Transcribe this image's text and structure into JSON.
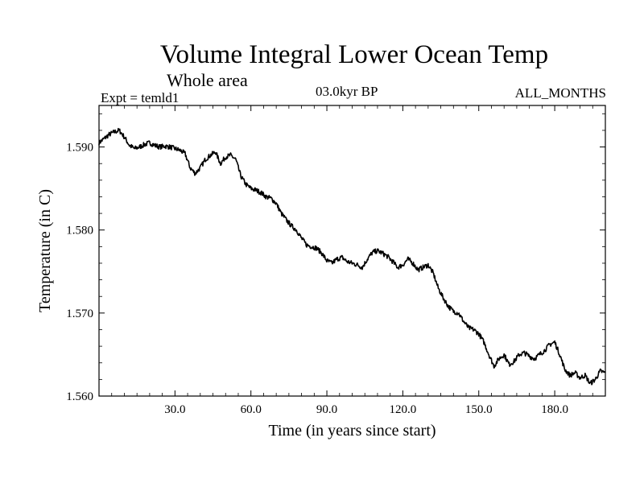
{
  "header": {
    "title": "Volume Integral Lower Ocean Temp",
    "subtitle": "Whole area",
    "experiment": "Expt = temld1",
    "time_label": "03.0kyr BP",
    "months": "ALL_MONTHS"
  },
  "chart_data": {
    "type": "line",
    "title": "Volume Integral Lower Ocean Temp",
    "xlabel": "Time (in years since start)",
    "ylabel": "Temperature (in C)",
    "xlim": [
      0,
      200
    ],
    "ylim": [
      1.56,
      1.595
    ],
    "xticks": [
      30,
      60,
      90,
      120,
      150,
      180
    ],
    "xtick_labels": [
      "30.0",
      "60.0",
      "90.0",
      "120.0",
      "150.0",
      "180.0"
    ],
    "yticks": [
      1.56,
      1.57,
      1.58,
      1.59
    ],
    "ytick_labels": [
      "1.560",
      "1.570",
      "1.580",
      "1.590"
    ],
    "grid": false,
    "series": [
      {
        "name": "Volume integral lower ocean temperature",
        "color": "#000000",
        "x": [
          0,
          2,
          4,
          6,
          8,
          10,
          12,
          14,
          16,
          18,
          20,
          22,
          24,
          26,
          28,
          30,
          32,
          34,
          36,
          38,
          40,
          42,
          44,
          46,
          48,
          50,
          52,
          54,
          56,
          58,
          60,
          62,
          64,
          66,
          68,
          70,
          72,
          74,
          76,
          78,
          80,
          82,
          84,
          86,
          88,
          90,
          92,
          94,
          96,
          98,
          100,
          102,
          104,
          106,
          108,
          110,
          112,
          114,
          116,
          118,
          120,
          122,
          124,
          126,
          128,
          130,
          132,
          134,
          136,
          138,
          140,
          142,
          144,
          146,
          148,
          150,
          152,
          154,
          156,
          158,
          160,
          162,
          164,
          166,
          168,
          170,
          172,
          174,
          176,
          178,
          180,
          182,
          184,
          186,
          188,
          190,
          192,
          194,
          196,
          198,
          200
        ],
        "y": [
          1.5905,
          1.591,
          1.5915,
          1.5918,
          1.592,
          1.5912,
          1.5902,
          1.5898,
          1.59,
          1.5903,
          1.5905,
          1.5902,
          1.59,
          1.5901,
          1.59,
          1.5898,
          1.5896,
          1.5892,
          1.5875,
          1.5868,
          1.5875,
          1.5885,
          1.589,
          1.5894,
          1.588,
          1.5888,
          1.589,
          1.5885,
          1.5865,
          1.5855,
          1.585,
          1.5848,
          1.5845,
          1.584,
          1.5838,
          1.5832,
          1.582,
          1.5812,
          1.5805,
          1.58,
          1.579,
          1.5782,
          1.578,
          1.5778,
          1.5772,
          1.5763,
          1.576,
          1.5765,
          1.5767,
          1.5762,
          1.576,
          1.5758,
          1.5755,
          1.5765,
          1.5773,
          1.5775,
          1.5772,
          1.5768,
          1.5762,
          1.5755,
          1.5758,
          1.5765,
          1.576,
          1.5752,
          1.5755,
          1.5758,
          1.5748,
          1.573,
          1.5718,
          1.5708,
          1.5702,
          1.57,
          1.569,
          1.5682,
          1.568,
          1.5675,
          1.5665,
          1.565,
          1.5636,
          1.5645,
          1.565,
          1.5638,
          1.5642,
          1.565,
          1.5652,
          1.5648,
          1.5645,
          1.565,
          1.5655,
          1.5662,
          1.5665,
          1.565,
          1.5632,
          1.5625,
          1.5628,
          1.5622,
          1.5625,
          1.5615,
          1.562,
          1.563,
          1.5628
        ]
      }
    ]
  }
}
